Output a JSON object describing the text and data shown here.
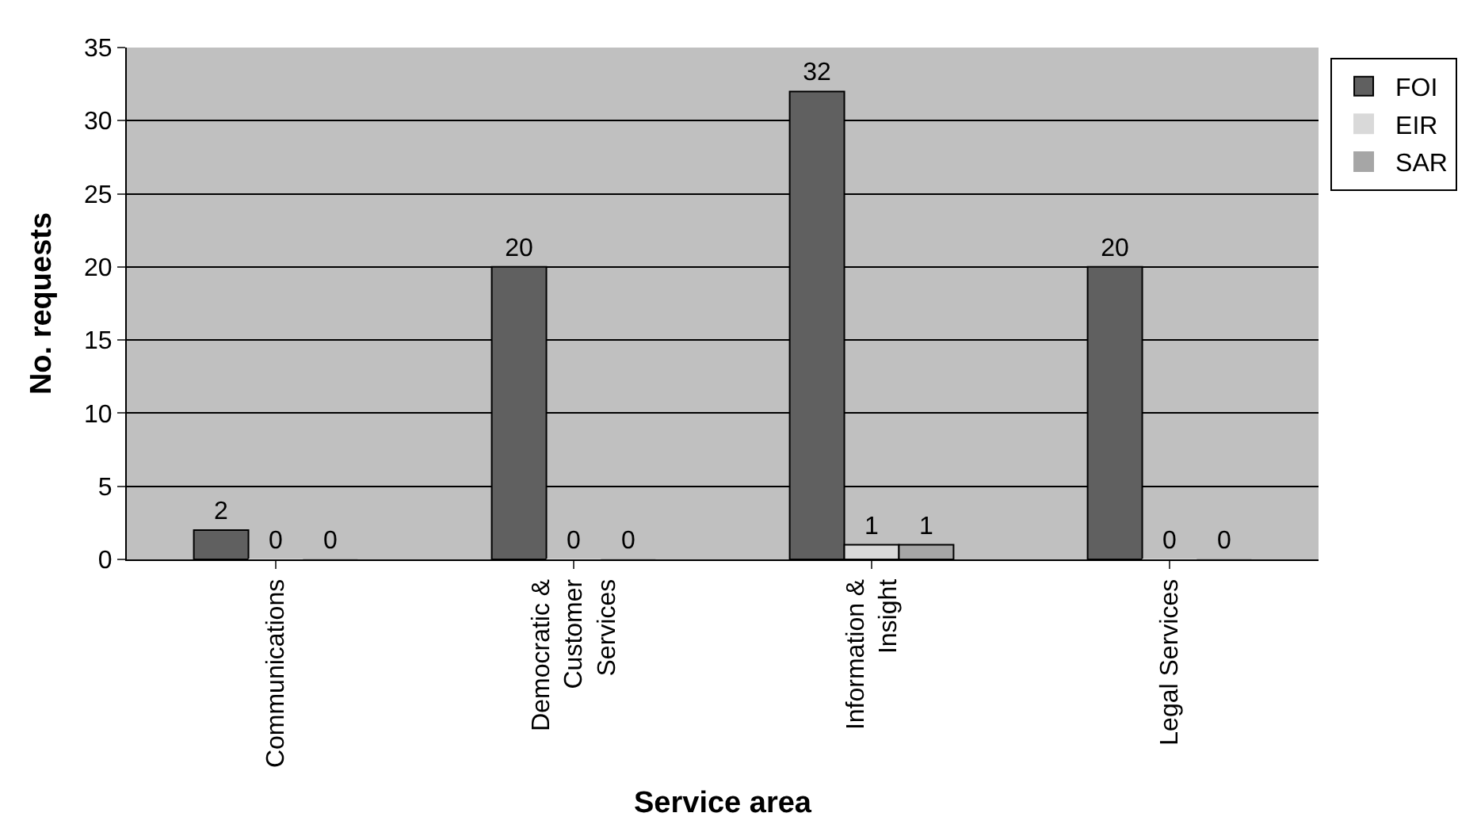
{
  "chart_data": {
    "type": "bar",
    "xlabel": "Service area",
    "ylabel": "No. requests",
    "categories": [
      "Communications",
      "Democratic & Customer Services",
      "Information & Insight",
      "Legal Services"
    ],
    "series": [
      {
        "name": "FOI",
        "color": "#606060",
        "values": [
          2,
          20,
          32,
          20
        ]
      },
      {
        "name": "EIR",
        "color": "#d9d9d9",
        "values": [
          0,
          0,
          1,
          0
        ]
      },
      {
        "name": "SAR",
        "color": "#a6a6a6",
        "values": [
          0,
          0,
          1,
          0
        ]
      }
    ],
    "ylim": [
      0,
      35
    ],
    "yticks": [
      0,
      5,
      10,
      15,
      20,
      25,
      30,
      35
    ],
    "grid": "y",
    "legend": "right",
    "data_labels": true
  }
}
